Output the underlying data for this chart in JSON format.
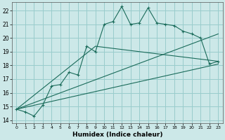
{
  "xlabel": "Humidex (Indice chaleur)",
  "bg_color": "#cce8e8",
  "grid_color": "#99cccc",
  "line_color": "#1a6b5a",
  "xlim": [
    -0.5,
    23.5
  ],
  "ylim": [
    13.8,
    22.6
  ],
  "yticks": [
    14,
    15,
    16,
    17,
    18,
    19,
    20,
    21,
    22
  ],
  "xticks": [
    0,
    1,
    2,
    3,
    4,
    5,
    6,
    7,
    8,
    9,
    10,
    11,
    12,
    13,
    14,
    15,
    16,
    17,
    18,
    19,
    20,
    21,
    22,
    23
  ],
  "series1": [
    14.8,
    14.6,
    14.3,
    15.1,
    16.5,
    16.6,
    17.5,
    17.3,
    19.4,
    19.0,
    21.0,
    21.2,
    22.3,
    21.0,
    21.1,
    22.2,
    21.1,
    21.0,
    20.9,
    20.5,
    20.3,
    20.0,
    18.1,
    18.3
  ],
  "series2_x": [
    0,
    23
  ],
  "series2_y": [
    14.8,
    18.1
  ],
  "series3_x": [
    0,
    23
  ],
  "series3_y": [
    14.8,
    20.3
  ],
  "series4_x": [
    0,
    9,
    23
  ],
  "series4_y": [
    14.8,
    19.4,
    18.3
  ]
}
